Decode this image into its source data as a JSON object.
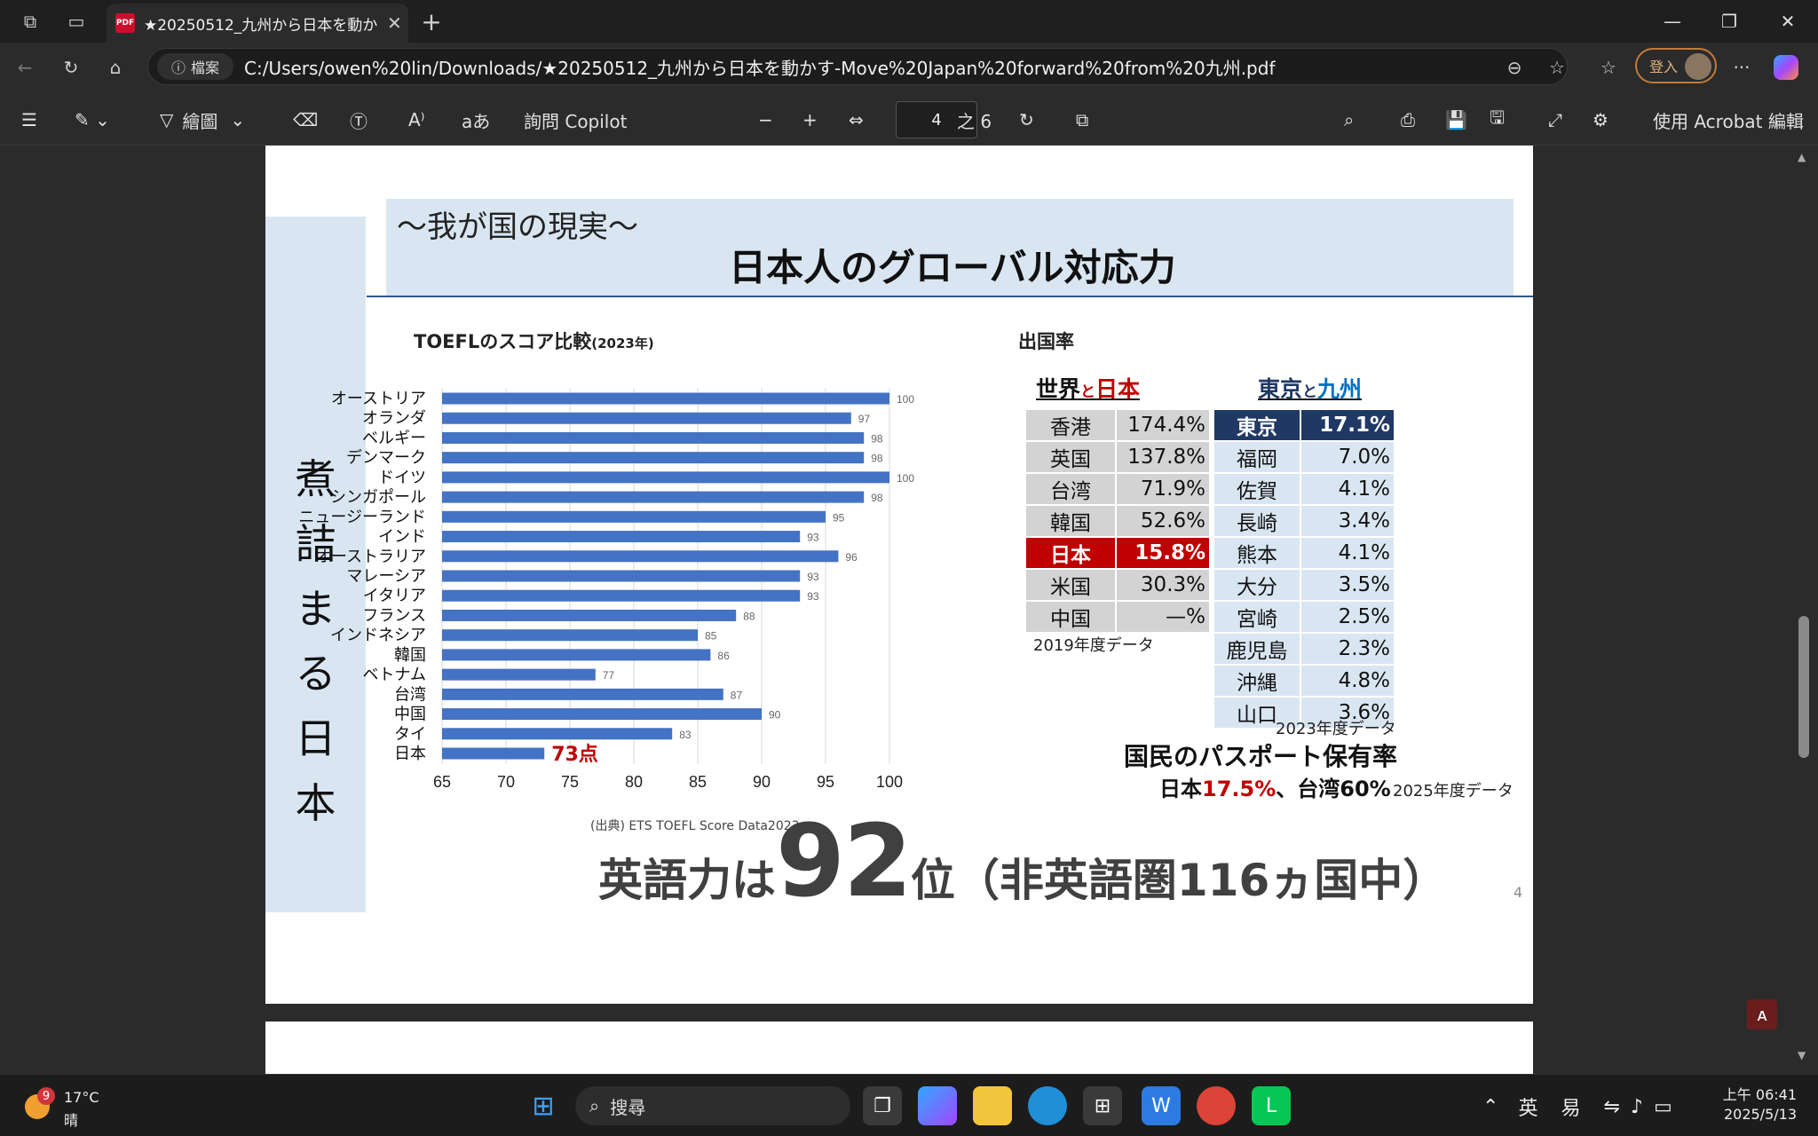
{
  "browser": {
    "tab_title": "★20250512_九州から日本を動か",
    "tab_close": "✕",
    "new_tab": "+",
    "address_badge": "檔案",
    "url": "C:/Users/owen%20lin/Downloads/★20250512_九州から日本を動かす-Move%20Japan%20forward%20from%20九州.pdf",
    "login_label": "登入",
    "more": "···"
  },
  "pdf_toolbar": {
    "draw_label": "繪圖",
    "ask_copilot": "詢問 Copilot",
    "zoom_out": "−",
    "zoom_in": "+",
    "page_current": "4",
    "page_total": "之 6",
    "acrobat_edit": "使用 Acrobat 編輯"
  },
  "slide": {
    "side_text": [
      "煮",
      "詰",
      "ま",
      "る",
      "日",
      "本"
    ],
    "subtitle": "～我が国の現実～",
    "title": "日本人のグローバル対応力",
    "chart_title_main": "TOEFLのスコア比較",
    "chart_title_year": "(2023年)",
    "japan_label": "73点",
    "source": "(出典) ETS TOEFL Score Data2023",
    "big_pre": "英語力は",
    "big_rank": "92",
    "big_post": "位（非英語圏116ヵ国中）",
    "page_number": "4"
  },
  "chart_data": {
    "type": "bar",
    "orientation": "horizontal",
    "title": "TOEFLのスコア比較(2023年)",
    "categories": [
      "オーストリア",
      "オランダ",
      "ベルギー",
      "デンマーク",
      "ドイツ",
      "シンガポール",
      "ニュージーランド",
      "インド",
      "オーストラリア",
      "マレーシア",
      "イタリア",
      "フランス",
      "インドネシア",
      "韓国",
      "ベトナム",
      "台湾",
      "中国",
      "タイ",
      "日本"
    ],
    "values": [
      100,
      97,
      98,
      98,
      100,
      98,
      95,
      93,
      96,
      93,
      93,
      88,
      85,
      86,
      77,
      87,
      90,
      83,
      73
    ],
    "xlim": [
      65,
      100
    ],
    "xticks": [
      65,
      70,
      75,
      80,
      85,
      90,
      95,
      100
    ],
    "bar_color": "#4472c4",
    "highlight_color": "#c00000",
    "grid": true
  },
  "departure": {
    "title": "出国率",
    "world_header_a": "世界",
    "world_header_to": "と",
    "world_header_b": "日本",
    "japan_header_a": "東京",
    "japan_header_to": "と",
    "japan_header_b": "九州",
    "world_rows": [
      {
        "name": "香港",
        "value": "174.4%"
      },
      {
        "name": "英国",
        "value": "137.8%"
      },
      {
        "name": "台湾",
        "value": "71.9%"
      },
      {
        "name": "韓国",
        "value": "52.6%"
      },
      {
        "name": "日本",
        "value": "15.8%"
      },
      {
        "name": "米国",
        "value": "30.3%"
      },
      {
        "name": "中国",
        "value": "—%"
      }
    ],
    "japan_rows": [
      {
        "name": "東京",
        "value": "17.1%"
      },
      {
        "name": "福岡",
        "value": "7.0%"
      },
      {
        "name": "佐賀",
        "value": "4.1%"
      },
      {
        "name": "長崎",
        "value": "3.4%"
      },
      {
        "name": "熊本",
        "value": "4.1%"
      },
      {
        "name": "大分",
        "value": "3.5%"
      },
      {
        "name": "宮崎",
        "value": "2.5%"
      },
      {
        "name": "鹿児島",
        "value": "2.3%"
      },
      {
        "name": "沖縄",
        "value": "4.8%"
      },
      {
        "name": "山口",
        "value": "3.6%"
      }
    ],
    "note_2019": "2019年度データ",
    "note_2023": "2023年度データ"
  },
  "passport": {
    "title": "国民のパスポート保有率",
    "japan_label": "日本",
    "japan_value": "17.5%",
    "taiwan_text": "、台湾60%",
    "note": "2025年度データ"
  },
  "taskbar": {
    "weather_badge": "9",
    "temperature": "17°C",
    "condition": "晴",
    "search_placeholder": "搜尋",
    "ime_lang": "英",
    "ime_mode": "易",
    "time": "上午 06:41",
    "date": "2025/5/13"
  }
}
